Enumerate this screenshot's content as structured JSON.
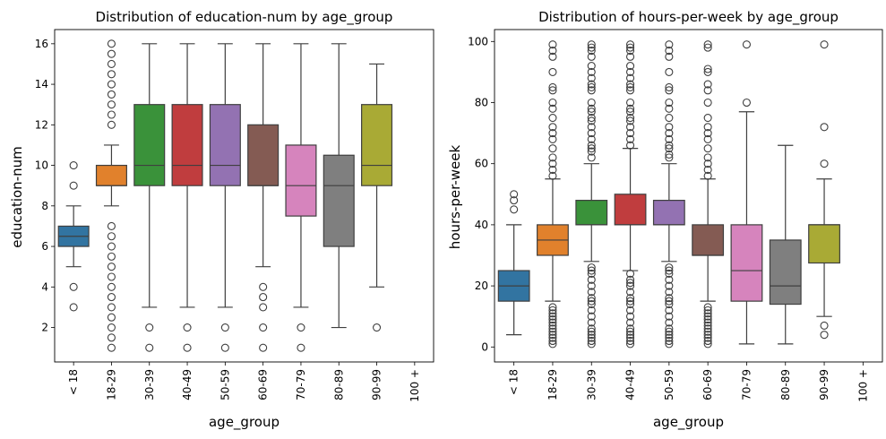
{
  "chart_data": [
    {
      "type": "boxplot",
      "title": "Distribution of education-num by age_group",
      "xlabel": "age_group",
      "ylabel": "education-num",
      "categories": [
        "< 18",
        "18-29",
        "30-39",
        "40-49",
        "50-59",
        "60-69",
        "70-79",
        "80-89",
        "90-99",
        "100 +"
      ],
      "colors": [
        "#3274a1",
        "#e1812c",
        "#3a923a",
        "#c03d3e",
        "#9372b2",
        "#845b53",
        "#d684bd",
        "#7f7f7f",
        "#a9aa35",
        "#2db8cc"
      ],
      "ylim": [
        0.3,
        16.7
      ],
      "yticks": [
        2,
        4,
        6,
        8,
        10,
        12,
        14,
        16
      ],
      "boxes": [
        {
          "q1": 6,
          "median": 6.5,
          "q3": 7,
          "whislo": 5,
          "whishi": 8,
          "fliers": [
            3,
            4,
            9,
            10
          ]
        },
        {
          "q1": 9,
          "median": 9,
          "q3": 10,
          "whislo": 8,
          "whishi": 11,
          "fliers": [
            1,
            1.5,
            2,
            2.5,
            3,
            3.5,
            4,
            4.5,
            5,
            5.5,
            6,
            6.5,
            7,
            12,
            12.5,
            13,
            13.5,
            14,
            14.5,
            15,
            15.5,
            16
          ]
        },
        {
          "q1": 9,
          "median": 10,
          "q3": 13,
          "whislo": 3,
          "whishi": 16,
          "fliers": [
            1,
            2
          ]
        },
        {
          "q1": 9,
          "median": 10,
          "q3": 13,
          "whislo": 3,
          "whishi": 16,
          "fliers": [
            1,
            2
          ]
        },
        {
          "q1": 9,
          "median": 10,
          "q3": 13,
          "whislo": 3,
          "whishi": 16,
          "fliers": [
            1,
            2
          ]
        },
        {
          "q1": 9,
          "median": 9,
          "q3": 12,
          "whislo": 5,
          "whishi": 16,
          "fliers": [
            1,
            2,
            3,
            3.5,
            4
          ]
        },
        {
          "q1": 7.5,
          "median": 9,
          "q3": 11,
          "whislo": 3,
          "whishi": 16,
          "fliers": [
            1,
            2
          ]
        },
        {
          "q1": 6,
          "median": 9,
          "q3": 10.5,
          "whislo": 2,
          "whishi": 16,
          "fliers": []
        },
        {
          "q1": 9,
          "median": 10,
          "q3": 13,
          "whislo": 4,
          "whishi": 15,
          "fliers": [
            2
          ]
        },
        null
      ]
    },
    {
      "type": "boxplot",
      "title": "Distribution of hours-per-week by age_group",
      "xlabel": "age_group",
      "ylabel": "hours-per-week",
      "categories": [
        "< 18",
        "18-29",
        "30-39",
        "40-49",
        "50-59",
        "60-69",
        "70-79",
        "80-89",
        "90-99",
        "100 +"
      ],
      "colors": [
        "#3274a1",
        "#e1812c",
        "#3a923a",
        "#c03d3e",
        "#9372b2",
        "#845b53",
        "#d684bd",
        "#7f7f7f",
        "#a9aa35",
        "#2db8cc"
      ],
      "ylim": [
        -4.9,
        103.9
      ],
      "yticks": [
        0,
        20,
        40,
        60,
        80,
        100
      ],
      "boxes": [
        {
          "q1": 15,
          "median": 20,
          "q3": 25,
          "whislo": 4,
          "whishi": 40,
          "fliers": [
            45,
            48,
            50
          ]
        },
        {
          "q1": 30,
          "median": 35,
          "q3": 40,
          "whislo": 15,
          "whishi": 55,
          "fliers": [
            1,
            2,
            3,
            4,
            5,
            6,
            7,
            8,
            9,
            10,
            11,
            12,
            13,
            56,
            58,
            60,
            62,
            65,
            68,
            70,
            72,
            75,
            78,
            80,
            84,
            85,
            90,
            95,
            97,
            99
          ]
        },
        {
          "q1": 40,
          "median": 40,
          "q3": 48,
          "whislo": 28,
          "whishi": 60,
          "fliers": [
            1,
            2,
            3,
            4,
            5,
            6,
            8,
            10,
            12,
            14,
            15,
            16,
            18,
            20,
            22,
            24,
            25,
            26,
            62,
            64,
            65,
            66,
            68,
            70,
            72,
            74,
            75,
            77,
            78,
            80,
            84,
            85,
            86,
            88,
            90,
            92,
            95,
            97,
            98,
            99
          ]
        },
        {
          "q1": 40,
          "median": 40,
          "q3": 50,
          "whislo": 25,
          "whishi": 65,
          "fliers": [
            1,
            2,
            3,
            4,
            5,
            6,
            8,
            10,
            12,
            14,
            15,
            16,
            18,
            20,
            21,
            22,
            24,
            66,
            68,
            70,
            72,
            74,
            75,
            77,
            78,
            80,
            84,
            85,
            86,
            88,
            90,
            92,
            95,
            97,
            98,
            99
          ]
        },
        {
          "q1": 40,
          "median": 40,
          "q3": 48,
          "whislo": 28,
          "whishi": 60,
          "fliers": [
            1,
            2,
            3,
            4,
            5,
            6,
            8,
            10,
            12,
            14,
            15,
            16,
            18,
            20,
            22,
            24,
            25,
            26,
            62,
            63,
            65,
            66,
            68,
            70,
            72,
            75,
            78,
            80,
            84,
            85,
            90,
            95,
            97,
            99
          ]
        },
        {
          "q1": 30,
          "median": 30,
          "q3": 40,
          "whislo": 15,
          "whishi": 55,
          "fliers": [
            1,
            2,
            3,
            4,
            5,
            6,
            7,
            8,
            9,
            10,
            11,
            12,
            13,
            56,
            58,
            60,
            62,
            65,
            68,
            70,
            72,
            75,
            80,
            84,
            86,
            90,
            91,
            98,
            99
          ]
        },
        {
          "q1": 15,
          "median": 25,
          "q3": 40,
          "whislo": 1,
          "whishi": 77,
          "fliers": [
            80,
            99
          ]
        },
        {
          "q1": 14,
          "median": 20,
          "q3": 35,
          "whislo": 1,
          "whishi": 66,
          "fliers": []
        },
        {
          "q1": 27.5,
          "median": 40,
          "q3": 40,
          "whislo": 10,
          "whishi": 55,
          "fliers": [
            4,
            7,
            60,
            72,
            99
          ]
        },
        null
      ]
    }
  ]
}
